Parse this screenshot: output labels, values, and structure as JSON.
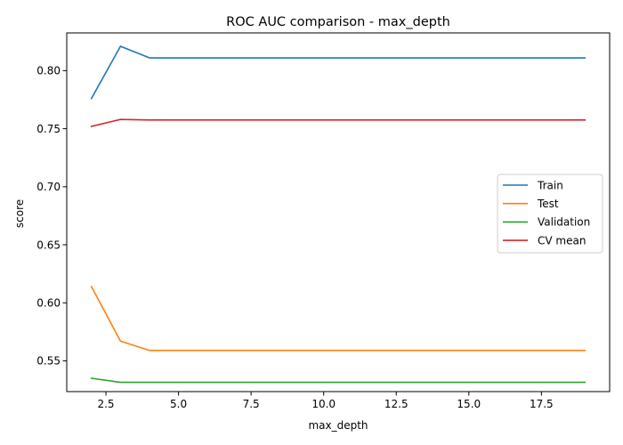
{
  "chart_data": {
    "type": "line",
    "title": "ROC AUC comparison - max_depth",
    "xlabel": "max_depth",
    "ylabel": "score",
    "xlim": [
      1.15,
      19.85
    ],
    "ylim": [
      0.5235,
      0.8325
    ],
    "x_ticks": [
      2.5,
      5.0,
      7.5,
      10.0,
      12.5,
      15.0,
      17.5
    ],
    "x_tick_labels": [
      "2.5",
      "5.0",
      "7.5",
      "10.0",
      "12.5",
      "15.0",
      "17.5"
    ],
    "y_ticks": [
      0.55,
      0.6,
      0.65,
      0.7,
      0.75,
      0.8
    ],
    "y_tick_labels": [
      "0.55",
      "0.60",
      "0.65",
      "0.70",
      "0.75",
      "0.80"
    ],
    "grid": false,
    "legend_position": "center-right",
    "x": [
      2,
      3,
      4,
      5,
      6,
      7,
      8,
      9,
      10,
      11,
      12,
      13,
      14,
      15,
      16,
      17,
      18,
      19
    ],
    "series": [
      {
        "name": "Train",
        "color": "#1f77b4",
        "values": [
          0.776,
          0.821,
          0.811,
          0.811,
          0.811,
          0.811,
          0.811,
          0.811,
          0.811,
          0.811,
          0.811,
          0.811,
          0.811,
          0.811,
          0.811,
          0.811,
          0.811,
          0.811
        ]
      },
      {
        "name": "Test",
        "color": "#ff7f0e",
        "values": [
          0.614,
          0.567,
          0.559,
          0.559,
          0.559,
          0.559,
          0.559,
          0.559,
          0.559,
          0.559,
          0.559,
          0.559,
          0.559,
          0.559,
          0.559,
          0.559,
          0.559,
          0.559
        ]
      },
      {
        "name": "Validation",
        "color": "#2ca02c",
        "values": [
          0.535,
          0.5315,
          0.5315,
          0.5315,
          0.5315,
          0.5315,
          0.5315,
          0.5315,
          0.5315,
          0.5315,
          0.5315,
          0.5315,
          0.5315,
          0.5315,
          0.5315,
          0.5315,
          0.5315,
          0.5315
        ]
      },
      {
        "name": "CV mean",
        "color": "#d62728",
        "values": [
          0.752,
          0.758,
          0.7575,
          0.7575,
          0.7575,
          0.7575,
          0.7575,
          0.7575,
          0.7575,
          0.7575,
          0.7575,
          0.7575,
          0.7575,
          0.7575,
          0.7575,
          0.7575,
          0.7575,
          0.7575
        ]
      }
    ]
  }
}
